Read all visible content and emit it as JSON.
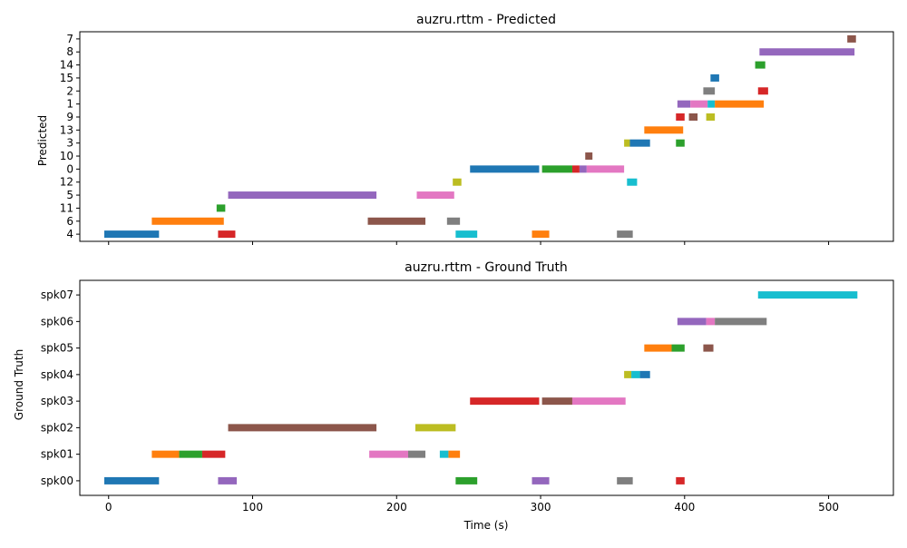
{
  "chart_data": [
    {
      "type": "timeline",
      "title": "auzru.rttm - Predicted",
      "ylabel": "Predicted",
      "xlabel": "",
      "xlim": [
        -20,
        545
      ],
      "x_ticks": [
        0,
        100,
        200,
        300,
        400,
        500
      ],
      "x_tick_labels_shown": false,
      "y_categories": [
        "4",
        "6",
        "11",
        "5",
        "12",
        "0",
        "10",
        "3",
        "13",
        "9",
        "1",
        "2",
        "15",
        "14",
        "8",
        "7"
      ],
      "segments": [
        {
          "row": "4",
          "start": -3,
          "end": 35,
          "color": "#1f77b4"
        },
        {
          "row": "4",
          "start": 76,
          "end": 88,
          "color": "#d62728"
        },
        {
          "row": "4",
          "start": 241,
          "end": 256,
          "color": "#17becf"
        },
        {
          "row": "4",
          "start": 294,
          "end": 306,
          "color": "#ff7f0e"
        },
        {
          "row": "4",
          "start": 353,
          "end": 364,
          "color": "#7f7f7f"
        },
        {
          "row": "6",
          "start": 30,
          "end": 80,
          "color": "#ff7f0e"
        },
        {
          "row": "6",
          "start": 180,
          "end": 220,
          "color": "#8c564b"
        },
        {
          "row": "6",
          "start": 235,
          "end": 244,
          "color": "#7f7f7f"
        },
        {
          "row": "11",
          "start": 75,
          "end": 81,
          "color": "#2ca02c"
        },
        {
          "row": "5",
          "start": 83,
          "end": 186,
          "color": "#9467bd"
        },
        {
          "row": "5",
          "start": 214,
          "end": 240,
          "color": "#e377c2"
        },
        {
          "row": "12",
          "start": 239,
          "end": 245,
          "color": "#bcbd22"
        },
        {
          "row": "12",
          "start": 360,
          "end": 367,
          "color": "#17becf"
        },
        {
          "row": "0",
          "start": 251,
          "end": 299,
          "color": "#1f77b4"
        },
        {
          "row": "0",
          "start": 301,
          "end": 322,
          "color": "#2ca02c"
        },
        {
          "row": "0",
          "start": 322,
          "end": 327,
          "color": "#d62728"
        },
        {
          "row": "0",
          "start": 327,
          "end": 332,
          "color": "#9467bd"
        },
        {
          "row": "0",
          "start": 332,
          "end": 358,
          "color": "#e377c2"
        },
        {
          "row": "10",
          "start": 331,
          "end": 336,
          "color": "#8c564b"
        },
        {
          "row": "3",
          "start": 358,
          "end": 362,
          "color": "#bcbd22"
        },
        {
          "row": "3",
          "start": 362,
          "end": 376,
          "color": "#1f77b4"
        },
        {
          "row": "3",
          "start": 394,
          "end": 400,
          "color": "#2ca02c"
        },
        {
          "row": "13",
          "start": 372,
          "end": 399,
          "color": "#ff7f0e"
        },
        {
          "row": "9",
          "start": 394,
          "end": 400,
          "color": "#d62728"
        },
        {
          "row": "9",
          "start": 403,
          "end": 409,
          "color": "#8c564b"
        },
        {
          "row": "9",
          "start": 415,
          "end": 421,
          "color": "#bcbd22"
        },
        {
          "row": "1",
          "start": 395,
          "end": 404,
          "color": "#9467bd"
        },
        {
          "row": "1",
          "start": 404,
          "end": 416,
          "color": "#e377c2"
        },
        {
          "row": "1",
          "start": 416,
          "end": 421,
          "color": "#17becf"
        },
        {
          "row": "1",
          "start": 421,
          "end": 455,
          "color": "#ff7f0e"
        },
        {
          "row": "2",
          "start": 413,
          "end": 421,
          "color": "#7f7f7f"
        },
        {
          "row": "2",
          "start": 451,
          "end": 458,
          "color": "#d62728"
        },
        {
          "row": "15",
          "start": 418,
          "end": 424,
          "color": "#1f77b4"
        },
        {
          "row": "14",
          "start": 449,
          "end": 456,
          "color": "#2ca02c"
        },
        {
          "row": "8",
          "start": 452,
          "end": 518,
          "color": "#9467bd"
        },
        {
          "row": "7",
          "start": 513,
          "end": 519,
          "color": "#8c564b"
        }
      ]
    },
    {
      "type": "timeline",
      "title": "auzru.rttm - Ground Truth",
      "ylabel": "Ground Truth",
      "xlabel": "Time (s)",
      "xlim": [
        -20,
        545
      ],
      "x_ticks": [
        0,
        100,
        200,
        300,
        400,
        500
      ],
      "x_tick_labels_shown": true,
      "y_categories": [
        "spk00",
        "spk01",
        "spk02",
        "spk03",
        "spk04",
        "spk05",
        "spk06",
        "spk07"
      ],
      "segments": [
        {
          "row": "spk00",
          "start": -3,
          "end": 35,
          "color": "#1f77b4"
        },
        {
          "row": "spk00",
          "start": 76,
          "end": 89,
          "color": "#9467bd"
        },
        {
          "row": "spk00",
          "start": 241,
          "end": 256,
          "color": "#2ca02c"
        },
        {
          "row": "spk00",
          "start": 294,
          "end": 306,
          "color": "#9467bd"
        },
        {
          "row": "spk00",
          "start": 353,
          "end": 364,
          "color": "#7f7f7f"
        },
        {
          "row": "spk00",
          "start": 394,
          "end": 400,
          "color": "#d62728"
        },
        {
          "row": "spk01",
          "start": 30,
          "end": 49,
          "color": "#ff7f0e"
        },
        {
          "row": "spk01",
          "start": 49,
          "end": 65,
          "color": "#2ca02c"
        },
        {
          "row": "spk01",
          "start": 65,
          "end": 81,
          "color": "#d62728"
        },
        {
          "row": "spk01",
          "start": 181,
          "end": 208,
          "color": "#e377c2"
        },
        {
          "row": "spk01",
          "start": 208,
          "end": 220,
          "color": "#7f7f7f"
        },
        {
          "row": "spk01",
          "start": 230,
          "end": 236,
          "color": "#17becf"
        },
        {
          "row": "spk01",
          "start": 236,
          "end": 244,
          "color": "#ff7f0e"
        },
        {
          "row": "spk02",
          "start": 83,
          "end": 186,
          "color": "#8c564b"
        },
        {
          "row": "spk02",
          "start": 213,
          "end": 241,
          "color": "#bcbd22"
        },
        {
          "row": "spk03",
          "start": 251,
          "end": 299,
          "color": "#d62728"
        },
        {
          "row": "spk03",
          "start": 301,
          "end": 322,
          "color": "#8c564b"
        },
        {
          "row": "spk03",
          "start": 322,
          "end": 359,
          "color": "#e377c2"
        },
        {
          "row": "spk04",
          "start": 358,
          "end": 363,
          "color": "#bcbd22"
        },
        {
          "row": "spk04",
          "start": 363,
          "end": 369,
          "color": "#17becf"
        },
        {
          "row": "spk04",
          "start": 369,
          "end": 376,
          "color": "#1f77b4"
        },
        {
          "row": "spk05",
          "start": 372,
          "end": 391,
          "color": "#ff7f0e"
        },
        {
          "row": "spk05",
          "start": 391,
          "end": 400,
          "color": "#2ca02c"
        },
        {
          "row": "spk05",
          "start": 413,
          "end": 420,
          "color": "#8c564b"
        },
        {
          "row": "spk06",
          "start": 395,
          "end": 415,
          "color": "#9467bd"
        },
        {
          "row": "spk06",
          "start": 415,
          "end": 421,
          "color": "#e377c2"
        },
        {
          "row": "spk06",
          "start": 421,
          "end": 457,
          "color": "#7f7f7f"
        },
        {
          "row": "spk07",
          "start": 451,
          "end": 520,
          "color": "#17becf"
        }
      ]
    }
  ]
}
